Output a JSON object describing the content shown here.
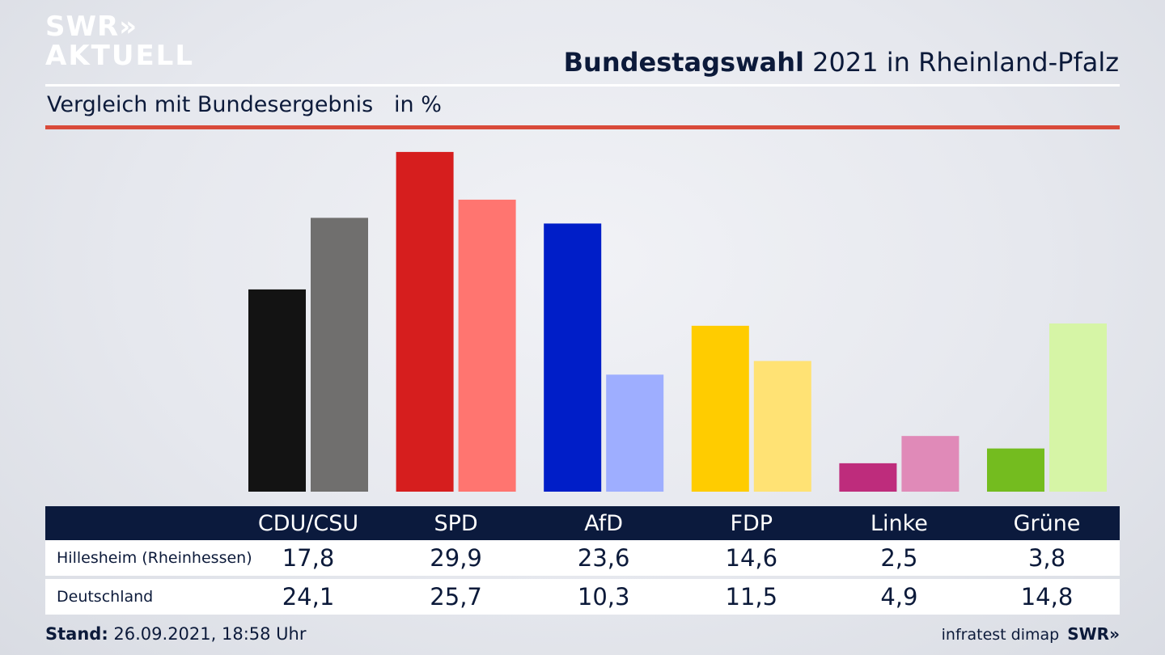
{
  "brand": {
    "logo_line1": "SWR»",
    "logo_line2": "AKTUELL",
    "footer_logo": "SWR»"
  },
  "header": {
    "title_bold": "Bundestagswahl",
    "title_rest": " 2021 in Rheinland-Pfalz"
  },
  "subtitle": "Vergleich mit Bundesergebnis   in %",
  "colors": {
    "rule": "#d94a3a",
    "table_header_bg": "#0b1a3d"
  },
  "table": {
    "rows": [
      {
        "label": "Hillesheim (Rheinhessen)",
        "values": [
          "17,8",
          "29,9",
          "23,6",
          "14,6",
          "2,5",
          "3,8"
        ]
      },
      {
        "label": "Deutschland",
        "values": [
          "24,1",
          "25,7",
          "10,3",
          "11,5",
          "4,9",
          "14,8"
        ]
      }
    ]
  },
  "chart_data": {
    "type": "bar",
    "categories": [
      "CDU/CSU",
      "SPD",
      "AfD",
      "FDP",
      "Linke",
      "Grüne"
    ],
    "series": [
      {
        "name": "Hillesheim (Rheinhessen)",
        "values": [
          17.8,
          29.9,
          23.6,
          14.6,
          2.5,
          3.8
        ],
        "colors": [
          "#131313",
          "#d61e1e",
          "#001ec8",
          "#ffcc00",
          "#be2c7c",
          "#74bc1f"
        ]
      },
      {
        "name": "Deutschland",
        "values": [
          24.1,
          25.7,
          10.3,
          11.5,
          4.9,
          14.8
        ],
        "colors": [
          "#706f6e",
          "#ff7570",
          "#9eaeff",
          "#ffe274",
          "#e08ab8",
          "#d6f5a6"
        ]
      }
    ],
    "title": "Bundestagswahl 2021 in Rheinland-Pfalz",
    "subtitle": "Vergleich mit Bundesergebnis   in %",
    "xlabel": "",
    "ylabel": "",
    "ylim": [
      0,
      30
    ],
    "grid": false
  },
  "footer": {
    "stand_label": "Stand:",
    "stand_value": " 26.09.2021, 18:58 Uhr",
    "source": "infratest dimap"
  }
}
